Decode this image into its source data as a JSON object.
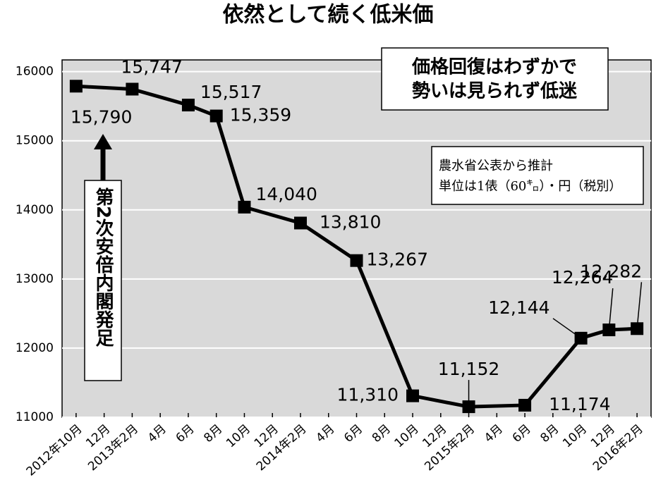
{
  "chart_data": {
    "type": "line",
    "title": "依然として続く低米価",
    "categories": [
      "2012年10月",
      "12月",
      "2013年2月",
      "4月",
      "6月",
      "8月",
      "10月",
      "12月",
      "2014年2月",
      "4月",
      "6月",
      "8月",
      "10月",
      "12月",
      "2015年2月",
      "4月",
      "6月",
      "8月",
      "10月",
      "12月",
      "2016年2月"
    ],
    "values": [
      15790,
      null,
      15747,
      null,
      15517,
      15359,
      14040,
      null,
      13810,
      null,
      13267,
      null,
      11310,
      null,
      11152,
      null,
      11174,
      null,
      12144,
      12264,
      12282
    ],
    "value_labels": [
      "15,790",
      null,
      "15,747",
      null,
      "15,517",
      "15,359",
      "14,040",
      null,
      "13,810",
      null,
      "13,267",
      null,
      "11,310",
      null,
      "11,152",
      null,
      "11,174",
      null,
      "12,144",
      "12,264",
      "12,282"
    ],
    "color": "#000000",
    "ylim": [
      11000,
      16170
    ],
    "yticks": [
      11000,
      12000,
      13000,
      14000,
      15000,
      16000
    ],
    "grid": true,
    "annotations": {
      "headline": [
        "価格回復はわずかで",
        "勢いは見られず低迷"
      ],
      "note": [
        "農水省公表から推計",
        "単位は1俵（60㌔）・円（税別）"
      ],
      "event": "第2次安倍内閣発足"
    }
  }
}
